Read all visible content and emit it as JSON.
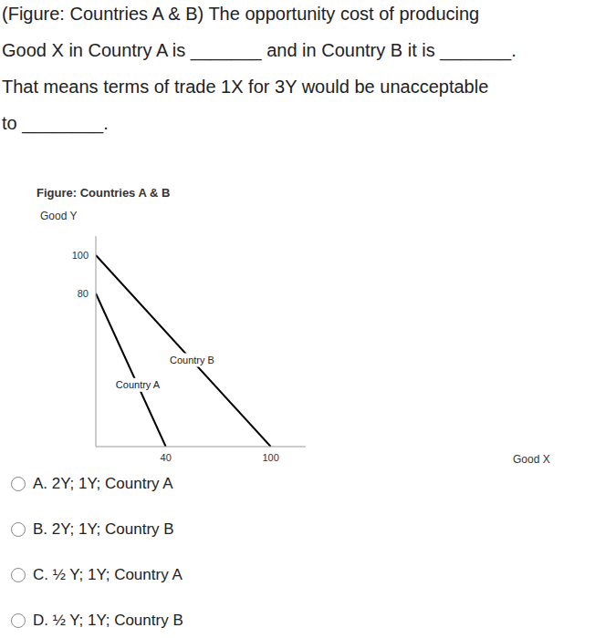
{
  "question": {
    "lines": [
      "(Figure: Countries A & B) The opportunity cost of producing",
      "Good X in Country A is _______ and in Country B it is _______.",
      "That means terms of trade 1X for 3Y would be unacceptable",
      "to ________."
    ]
  },
  "chart_data": {
    "type": "line",
    "title": "Figure: Countries A & B",
    "x_label": "Good X",
    "y_label": "Good Y",
    "xlim": [
      0,
      120
    ],
    "ylim": [
      0,
      110
    ],
    "xticks": [
      40,
      100
    ],
    "yticks": [
      80,
      100
    ],
    "series": [
      {
        "name": "Country A",
        "color": "#000000",
        "x": [
          0,
          40
        ],
        "values": [
          80,
          0
        ]
      },
      {
        "name": "Country B",
        "color": "#000000",
        "x": [
          0,
          100
        ],
        "values": [
          100,
          0
        ]
      }
    ]
  },
  "options": [
    "A. 2Y; 1Y; Country A",
    "B. 2Y; 1Y; Country B",
    "C. ½ Y; 1Y; Country A",
    "D. ½ Y; 1Y; Country B"
  ]
}
